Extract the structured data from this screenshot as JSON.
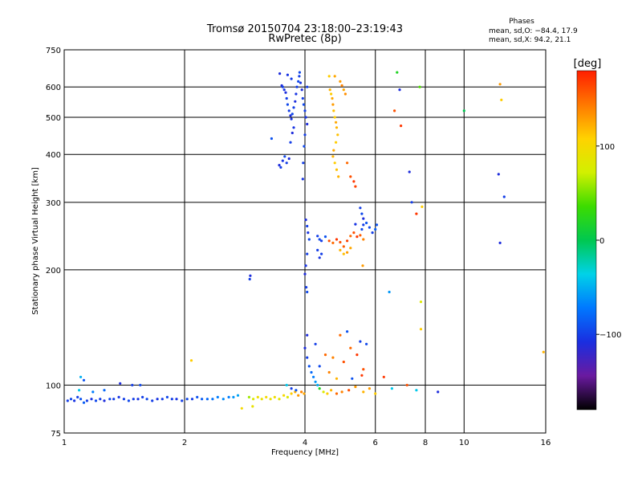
{
  "chart_data": {
    "type": "scatter",
    "title": "Tromsø 20150704 23:18:00–23:19:43",
    "subtitle": "RwPretec (8p)",
    "xlabel": "Frequency [MHz]",
    "ylabel": "Stationary phase Virtual Height [km]",
    "x_scale": "log",
    "y_scale": "log",
    "xlim": [
      1,
      16
    ],
    "ylim": [
      75,
      750
    ],
    "x_ticks": [
      1,
      2,
      4,
      6,
      8,
      10,
      16
    ],
    "x_tick_labels": [
      "1",
      "2",
      "4",
      "6",
      "8",
      "10",
      "16"
    ],
    "y_ticks": [
      75,
      100,
      200,
      300,
      400,
      500,
      600,
      750
    ],
    "y_tick_labels": [
      "75",
      "100",
      "200",
      "300",
      "400",
      "500",
      "600",
      "750"
    ],
    "grid": true,
    "stats": {
      "title": "Phases",
      "line1": "mean, sd,O: −84.4, 17.9",
      "line2": "mean, sd,X:  94.2, 21.1"
    },
    "colorbar": {
      "label": "[deg]",
      "range": [
        -180,
        180
      ],
      "ticks": [
        100,
        0,
        -100
      ],
      "tick_labels": [
        "100",
        "0",
        "−100"
      ],
      "colors": [
        "#000000",
        "#6a1aa0",
        "#1a2ee0",
        "#0078ff",
        "#00d2e8",
        "#00c850",
        "#3cdc00",
        "#d2f000",
        "#ffd200",
        "#ff7800",
        "#ff1e00"
      ]
    },
    "points": [
      [
        1.02,
        91,
        -100
      ],
      [
        1.04,
        92,
        -95
      ],
      [
        1.06,
        91,
        -105
      ],
      [
        1.08,
        93,
        -100
      ],
      [
        1.1,
        92,
        -90
      ],
      [
        1.12,
        90,
        -85
      ],
      [
        1.14,
        91,
        -100
      ],
      [
        1.17,
        92,
        -105
      ],
      [
        1.2,
        91,
        -95
      ],
      [
        1.23,
        92,
        -100
      ],
      [
        1.26,
        91,
        -110
      ],
      [
        1.3,
        92,
        -95
      ],
      [
        1.33,
        92,
        -100
      ],
      [
        1.37,
        93,
        -105
      ],
      [
        1.41,
        92,
        -100
      ],
      [
        1.45,
        91,
        -95
      ],
      [
        1.49,
        92,
        -100
      ],
      [
        1.53,
        92,
        -105
      ],
      [
        1.57,
        93,
        -100
      ],
      [
        1.61,
        92,
        -95
      ],
      [
        1.66,
        91,
        -100
      ],
      [
        1.71,
        92,
        -105
      ],
      [
        1.76,
        92,
        -100
      ],
      [
        1.81,
        93,
        -95
      ],
      [
        1.86,
        92,
        -100
      ],
      [
        1.91,
        92,
        -105
      ],
      [
        1.97,
        91,
        -100
      ],
      [
        2.03,
        92,
        -95
      ],
      [
        2.09,
        92,
        -100
      ],
      [
        2.15,
        93,
        -90
      ],
      [
        2.21,
        92,
        -85
      ],
      [
        2.28,
        92,
        -80
      ],
      [
        2.35,
        92,
        -75
      ],
      [
        2.42,
        93,
        -70
      ],
      [
        2.5,
        92,
        -65
      ],
      [
        2.58,
        93,
        -70
      ],
      [
        2.65,
        93,
        -60
      ],
      [
        2.72,
        94,
        -55
      ],
      [
        1.09,
        97,
        -40
      ],
      [
        1.1,
        105,
        -50
      ],
      [
        1.12,
        103,
        -90
      ],
      [
        1.38,
        101,
        -110
      ],
      [
        1.48,
        100,
        -100
      ],
      [
        1.55,
        100,
        -95
      ],
      [
        1.26,
        97,
        -80
      ],
      [
        1.18,
        96,
        -70
      ],
      [
        2.9,
        93,
        60
      ],
      [
        2.97,
        92,
        80
      ],
      [
        3.05,
        93,
        95
      ],
      [
        3.12,
        92,
        90
      ],
      [
        3.2,
        93,
        100
      ],
      [
        3.28,
        92,
        90
      ],
      [
        3.36,
        93,
        95
      ],
      [
        3.45,
        92,
        85
      ],
      [
        3.54,
        94,
        100
      ],
      [
        3.62,
        93,
        80
      ],
      [
        3.7,
        95,
        110
      ],
      [
        3.78,
        96,
        120
      ],
      [
        3.85,
        94,
        130
      ],
      [
        3.92,
        96,
        140
      ],
      [
        3.98,
        95,
        125
      ],
      [
        2.08,
        116,
        110
      ],
      [
        2.92,
        193,
        -110
      ],
      [
        2.91,
        189,
        -100
      ],
      [
        2.78,
        87,
        100
      ],
      [
        2.96,
        88,
        90
      ],
      [
        3.5,
        605,
        -110
      ],
      [
        3.52,
        600,
        -100
      ],
      [
        3.55,
        590,
        -105
      ],
      [
        3.58,
        580,
        -110
      ],
      [
        3.6,
        560,
        -100
      ],
      [
        3.62,
        540,
        -95
      ],
      [
        3.65,
        520,
        -100
      ],
      [
        3.68,
        505,
        -110
      ],
      [
        3.7,
        495,
        -105
      ],
      [
        3.72,
        510,
        -95
      ],
      [
        3.75,
        530,
        -100
      ],
      [
        3.78,
        550,
        -110
      ],
      [
        3.8,
        575,
        -105
      ],
      [
        3.82,
        600,
        -100
      ],
      [
        3.85,
        620,
        -95
      ],
      [
        3.87,
        640,
        -100
      ],
      [
        3.9,
        615,
        -105
      ],
      [
        3.93,
        590,
        -110
      ],
      [
        3.95,
        560,
        -100
      ],
      [
        3.97,
        540,
        -95
      ],
      [
        4.0,
        520,
        -100
      ],
      [
        4.02,
        500,
        -105
      ],
      [
        4.05,
        480,
        -110
      ],
      [
        4.0,
        450,
        -100
      ],
      [
        3.98,
        420,
        -95
      ],
      [
        3.96,
        380,
        -100
      ],
      [
        3.95,
        345,
        -105
      ],
      [
        3.46,
        650,
        -110
      ],
      [
        3.62,
        645,
        -105
      ],
      [
        3.7,
        630,
        -100
      ],
      [
        3.88,
        655,
        -95
      ],
      [
        4.05,
        600,
        -100
      ],
      [
        3.75,
        470,
        -105
      ],
      [
        3.72,
        455,
        -110
      ],
      [
        3.68,
        430,
        -100
      ],
      [
        3.45,
        375,
        -110
      ],
      [
        3.48,
        370,
        -100
      ],
      [
        3.52,
        385,
        -105
      ],
      [
        3.56,
        395,
        -95
      ],
      [
        3.6,
        380,
        -100
      ],
      [
        3.65,
        390,
        -110
      ],
      [
        3.3,
        440,
        -90
      ],
      [
        4.02,
        270,
        -110
      ],
      [
        4.05,
        260,
        -100
      ],
      [
        4.07,
        250,
        -105
      ],
      [
        4.1,
        240,
        -95
      ],
      [
        4.05,
        220,
        -100
      ],
      [
        4.02,
        205,
        -105
      ],
      [
        4.0,
        195,
        -110
      ],
      [
        4.03,
        180,
        -100
      ],
      [
        4.05,
        175,
        -95
      ],
      [
        4.3,
        245,
        -100
      ],
      [
        4.35,
        240,
        -95
      ],
      [
        4.4,
        238,
        -100
      ],
      [
        4.5,
        244,
        -90
      ],
      [
        4.3,
        225,
        -100
      ],
      [
        4.35,
        215,
        -105
      ],
      [
        4.4,
        220,
        -100
      ],
      [
        4.62,
        590,
        120
      ],
      [
        4.65,
        575,
        110
      ],
      [
        4.68,
        560,
        125
      ],
      [
        4.7,
        540,
        130
      ],
      [
        4.72,
        520,
        115
      ],
      [
        4.75,
        500,
        110
      ],
      [
        4.78,
        485,
        125
      ],
      [
        4.8,
        470,
        120
      ],
      [
        4.83,
        450,
        115
      ],
      [
        4.78,
        430,
        110
      ],
      [
        4.72,
        410,
        125
      ],
      [
        4.7,
        395,
        120
      ],
      [
        4.75,
        380,
        110
      ],
      [
        4.8,
        365,
        115
      ],
      [
        4.85,
        350,
        120
      ],
      [
        4.9,
        620,
        130
      ],
      [
        4.95,
        605,
        140
      ],
      [
        5.0,
        590,
        125
      ],
      [
        5.05,
        575,
        135
      ],
      [
        4.6,
        640,
        110
      ],
      [
        4.75,
        640,
        125
      ],
      [
        5.1,
        380,
        150
      ],
      [
        5.2,
        350,
        160
      ],
      [
        5.3,
        340,
        170
      ],
      [
        5.35,
        330,
        165
      ],
      [
        4.6,
        238,
        160
      ],
      [
        4.7,
        235,
        150
      ],
      [
        4.8,
        240,
        170
      ],
      [
        4.9,
        236,
        160
      ],
      [
        5.0,
        230,
        155
      ],
      [
        5.1,
        238,
        165
      ],
      [
        5.2,
        245,
        150
      ],
      [
        5.3,
        250,
        160
      ],
      [
        5.4,
        244,
        170
      ],
      [
        5.5,
        246,
        155
      ],
      [
        4.9,
        225,
        120
      ],
      [
        5.0,
        220,
        115
      ],
      [
        5.1,
        222,
        130
      ],
      [
        5.2,
        228,
        125
      ],
      [
        5.55,
        255,
        -95
      ],
      [
        5.6,
        262,
        -100
      ],
      [
        5.7,
        265,
        -90
      ],
      [
        5.8,
        258,
        -95
      ],
      [
        5.9,
        250,
        -100
      ],
      [
        6.0,
        255,
        -85
      ],
      [
        6.05,
        262,
        -90
      ],
      [
        5.5,
        290,
        -100
      ],
      [
        5.55,
        280,
        -95
      ],
      [
        5.6,
        272,
        -110
      ],
      [
        5.35,
        263,
        -105
      ],
      [
        5.6,
        240,
        140
      ],
      [
        5.58,
        205,
        130
      ],
      [
        4.0,
        125,
        -110
      ],
      [
        4.05,
        118,
        -100
      ],
      [
        4.1,
        112,
        -90
      ],
      [
        4.15,
        108,
        -80
      ],
      [
        4.2,
        105,
        -70
      ],
      [
        4.25,
        102,
        -60
      ],
      [
        4.3,
        100,
        -50
      ],
      [
        4.35,
        98,
        20
      ],
      [
        4.45,
        96,
        80
      ],
      [
        4.55,
        95,
        110
      ],
      [
        4.65,
        97,
        120
      ],
      [
        4.8,
        95,
        150
      ],
      [
        4.95,
        96,
        140
      ],
      [
        5.15,
        97,
        160
      ],
      [
        5.35,
        99,
        130
      ],
      [
        5.6,
        96,
        120
      ],
      [
        5.8,
        98,
        130
      ],
      [
        6.0,
        95,
        110
      ],
      [
        4.05,
        135,
        -110
      ],
      [
        4.25,
        128,
        -100
      ],
      [
        4.5,
        120,
        150
      ],
      [
        4.7,
        118,
        140
      ],
      [
        5.0,
        115,
        160
      ],
      [
        5.2,
        125,
        150
      ],
      [
        5.4,
        120,
        170
      ],
      [
        5.6,
        110,
        160
      ],
      [
        5.5,
        130,
        -100
      ],
      [
        5.7,
        128,
        -95
      ],
      [
        4.9,
        135,
        150
      ],
      [
        5.1,
        138,
        -90
      ],
      [
        4.35,
        112,
        -95
      ],
      [
        4.6,
        108,
        140
      ],
      [
        4.8,
        104,
        120
      ],
      [
        5.25,
        104,
        -90
      ],
      [
        5.55,
        106,
        170
      ],
      [
        3.6,
        100,
        -40
      ],
      [
        3.7,
        98,
        -100
      ],
      [
        3.8,
        97,
        -90
      ],
      [
        6.3,
        105,
        170
      ],
      [
        6.6,
        98,
        -40
      ],
      [
        6.8,
        655,
        20
      ],
      [
        6.9,
        590,
        -110
      ],
      [
        6.7,
        520,
        160
      ],
      [
        6.95,
        475,
        170
      ],
      [
        7.3,
        360,
        -110
      ],
      [
        7.4,
        300,
        -100
      ],
      [
        7.6,
        280,
        170
      ],
      [
        7.85,
        292,
        110
      ],
      [
        6.5,
        175,
        -60
      ],
      [
        7.8,
        165,
        80
      ],
      [
        7.8,
        140,
        110
      ],
      [
        7.2,
        100,
        160
      ],
      [
        7.6,
        97,
        -40
      ],
      [
        8.6,
        96,
        -110
      ],
      [
        7.75,
        600,
        40
      ],
      [
        10.0,
        520,
        0
      ],
      [
        12.3,
        610,
        130
      ],
      [
        12.4,
        555,
        110
      ],
      [
        12.2,
        355,
        -110
      ],
      [
        12.6,
        310,
        -100
      ],
      [
        12.3,
        235,
        -110
      ],
      [
        15.8,
        122,
        120
      ]
    ]
  }
}
